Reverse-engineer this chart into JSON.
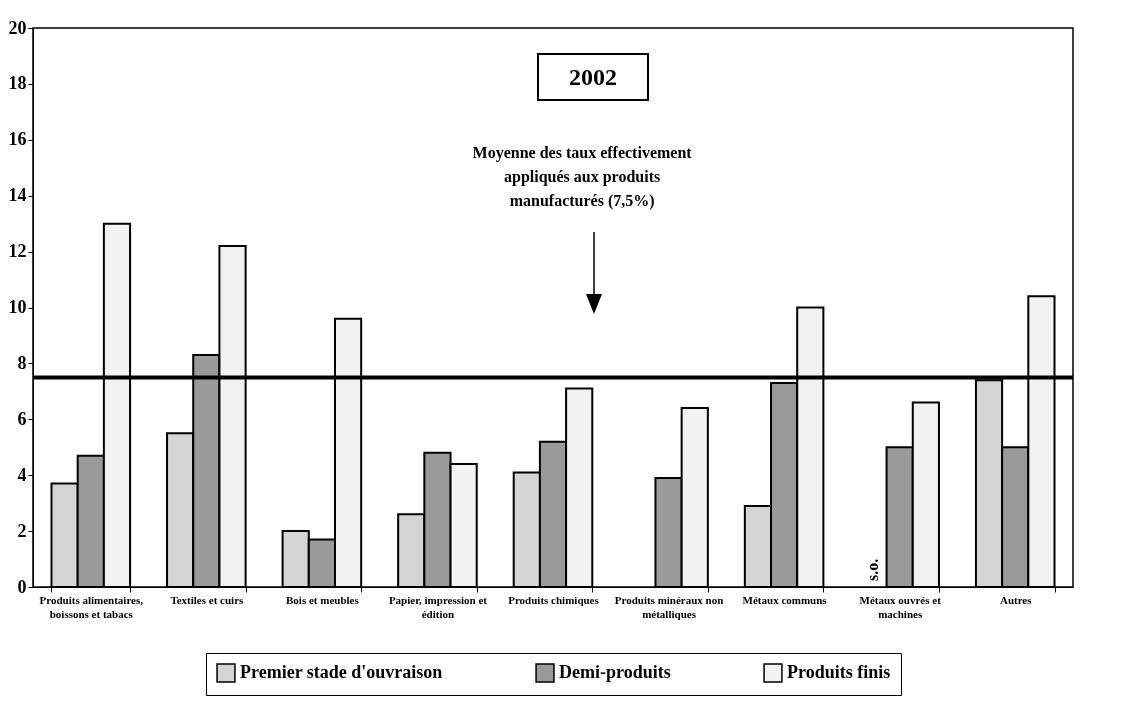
{
  "chart_data": {
    "type": "bar",
    "title": "2002",
    "categories": [
      "Produits alimentaires, boissons et tabacs",
      "Textiles et cuirs",
      "Bois et meubles",
      "Papier, impression et édition",
      "Produits chimiques",
      "Produits minéraux non métalliques",
      "Métaux communs",
      "Métaux ouvrés et machines",
      "Autres"
    ],
    "series": [
      {
        "name": "Premier stade d'ouvraison",
        "color": "#d4d4d4",
        "values": [
          3.7,
          5.5,
          2.0,
          2.6,
          4.1,
          null,
          2.9,
          null,
          7.4
        ]
      },
      {
        "name": "Demi-produits",
        "color": "#9a9a9a",
        "values": [
          4.7,
          8.3,
          1.7,
          4.8,
          5.2,
          3.9,
          7.3,
          5.0,
          5.0
        ]
      },
      {
        "name": "Produits finis",
        "color": "#f2f2f2",
        "values": [
          13.0,
          12.2,
          9.6,
          4.4,
          7.1,
          6.4,
          10.0,
          6.6,
          10.4
        ]
      }
    ],
    "ylim": [
      0,
      20
    ],
    "yticks": [
      0,
      2,
      4,
      6,
      8,
      10,
      12,
      14,
      16,
      18,
      20
    ],
    "grid": false,
    "legend": "bottom",
    "ref_lines": [
      {
        "axis": "y",
        "value": 7.5,
        "color": "#000000"
      }
    ],
    "annotations": [
      "Moyenne des taux effectivement appliqués aux produits manufacturés (7,5%)",
      {
        "text": "s.o.",
        "x": "Métaux ouvrés et machines",
        "y": 0
      }
    ]
  }
}
